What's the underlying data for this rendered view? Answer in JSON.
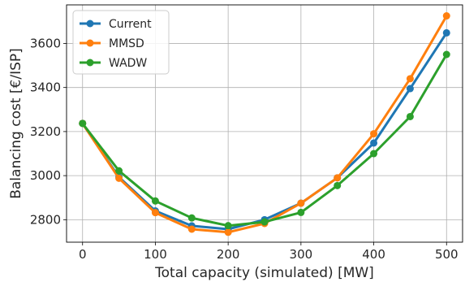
{
  "chart_data": {
    "type": "line",
    "xlabel": "Total capacity (simulated) [MW]",
    "ylabel": "Balancing cost [€/ISP]",
    "xlim": [
      -22,
      522
    ],
    "ylim": [
      2698,
      3775
    ],
    "xticks": [
      0,
      100,
      200,
      300,
      400,
      500
    ],
    "yticks": [
      2800,
      3000,
      3200,
      3400,
      3600
    ],
    "grid": true,
    "legend_position": "top-left",
    "x": [
      0,
      50,
      100,
      150,
      200,
      250,
      300,
      350,
      400,
      450,
      500
    ],
    "series": [
      {
        "name": "Current",
        "color": "#1f77b4",
        "values": [
          3237,
          2993,
          2840,
          2772,
          2757,
          2800,
          2875,
          2990,
          3148,
          3395,
          3648
        ]
      },
      {
        "name": "MMSD",
        "color": "#ff7f0e",
        "values": [
          3237,
          2988,
          2832,
          2757,
          2743,
          2783,
          2875,
          2990,
          3190,
          3440,
          3725
        ]
      },
      {
        "name": "WADW",
        "color": "#2ca02c",
        "values": [
          3237,
          3022,
          2885,
          2808,
          2773,
          2790,
          2833,
          2955,
          3100,
          3268,
          3550
        ]
      }
    ]
  }
}
